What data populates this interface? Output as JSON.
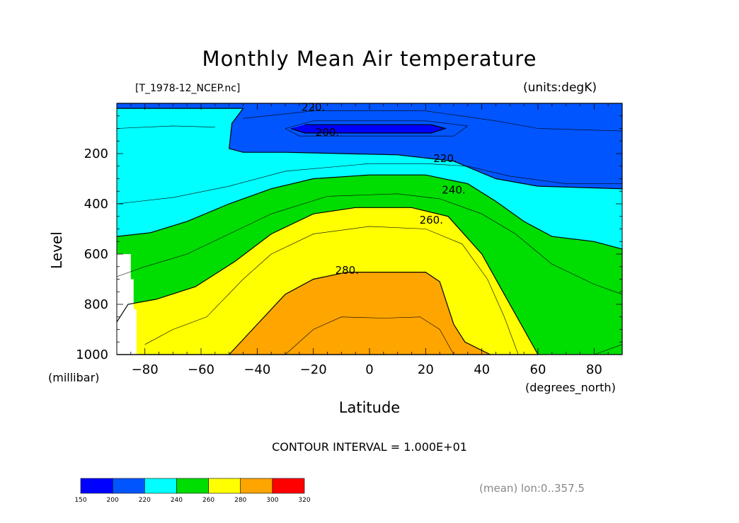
{
  "header": {
    "title": "Monthly Mean Air temperature",
    "file": "[T_1978-12_NCEP.nc]",
    "units": "(units:degK)"
  },
  "footer": {
    "contour_interval": "CONTOUR INTERVAL = 1.000E+01",
    "mean_note": "(mean) lon:0..357.5"
  },
  "colorbar": {
    "labels": [
      "150",
      "200",
      "220",
      "240",
      "260",
      "280",
      "300",
      "320"
    ],
    "colors": [
      "#0000ff",
      "#0055ff",
      "#00ffff",
      "#00dd00",
      "#ffff00",
      "#ffa500",
      "#ff0000"
    ]
  },
  "chart_data": {
    "type": "contour",
    "title": "Monthly Mean Air temperature",
    "xlabel": "Latitude",
    "xunit": "(degrees_north)",
    "ylabel": "Level",
    "yunit": "(millibar)",
    "xlim": [
      -90,
      90
    ],
    "ylim": [
      1000,
      0
    ],
    "xticks": [
      "-80",
      "-60",
      "-40",
      "-20",
      "0",
      "20",
      "40",
      "60",
      "80"
    ],
    "yticks": [
      "200",
      "400",
      "600",
      "800",
      "1000"
    ],
    "contour_labels": [
      "220.",
      "200.",
      "220.",
      "240.",
      "260.",
      "280."
    ],
    "levels": [
      200,
      220,
      240,
      260,
      280
    ],
    "band_colors": {
      "lt200": "#0000ff",
      "200_220": "#0055ff",
      "220_240": "#00ffff",
      "240_260": "#00dd00",
      "260_280": "#ffff00",
      "280_300": "#ffa500",
      "missing": "#ffffff"
    },
    "regions": {
      "core_200": [
        [
          -23,
          85
        ],
        [
          22,
          85
        ],
        [
          27,
          100
        ],
        [
          22,
          118
        ],
        [
          -23,
          118
        ],
        [
          -28,
          100
        ]
      ],
      "upper_220": [
        [
          -90,
          0
        ],
        [
          90,
          0
        ],
        [
          90,
          340
        ],
        [
          60,
          330
        ],
        [
          45,
          300
        ],
        [
          30,
          230
        ],
        [
          10,
          205
        ],
        [
          -10,
          200
        ],
        [
          -30,
          195
        ],
        [
          -45,
          195
        ],
        [
          -50,
          180
        ],
        [
          -49,
          80
        ],
        [
          -45,
          20
        ],
        [
          -90,
          20
        ]
      ],
      "mid_240": [
        [
          -90,
          530
        ],
        [
          -78,
          515
        ],
        [
          -65,
          470
        ],
        [
          -50,
          400
        ],
        [
          -35,
          340
        ],
        [
          -20,
          300
        ],
        [
          0,
          285
        ],
        [
          20,
          285
        ],
        [
          35,
          320
        ],
        [
          45,
          390
        ],
        [
          55,
          470
        ],
        [
          65,
          530
        ],
        [
          80,
          550
        ],
        [
          90,
          580
        ],
        [
          90,
          1000
        ],
        [
          -90,
          1000
        ]
      ],
      "low_260": [
        [
          -90,
          870
        ],
        [
          -86,
          800
        ],
        [
          -76,
          780
        ],
        [
          -62,
          730
        ],
        [
          -48,
          630
        ],
        [
          -35,
          520
        ],
        [
          -20,
          440
        ],
        [
          -5,
          415
        ],
        [
          15,
          415
        ],
        [
          28,
          450
        ],
        [
          40,
          600
        ],
        [
          48,
          760
        ],
        [
          55,
          900
        ],
        [
          60,
          1000
        ],
        [
          -90,
          1000
        ]
      ],
      "warm_280": [
        [
          -50,
          1000
        ],
        [
          -40,
          880
        ],
        [
          -30,
          760
        ],
        [
          -20,
          700
        ],
        [
          -8,
          672
        ],
        [
          20,
          672
        ],
        [
          25,
          710
        ],
        [
          30,
          880
        ],
        [
          34,
          950
        ],
        [
          43,
          1000
        ]
      ],
      "missing": [
        [
          -90,
          600
        ],
        [
          -85,
          600
        ],
        [
          -85,
          700
        ],
        [
          -84,
          700
        ],
        [
          -84,
          820
        ],
        [
          -83,
          820
        ],
        [
          -83,
          1000
        ],
        [
          -90,
          1000
        ]
      ]
    },
    "thin_contours": [
      [
        [
          -45,
          60
        ],
        [
          -20,
          30
        ],
        [
          20,
          30
        ],
        [
          45,
          70
        ],
        [
          60,
          100
        ],
        [
          90,
          110
        ]
      ],
      [
        [
          -90,
          100
        ],
        [
          -70,
          90
        ],
        [
          -55,
          95
        ]
      ],
      [
        [
          -30,
          100
        ],
        [
          -20,
          70
        ],
        [
          20,
          70
        ],
        [
          35,
          90
        ],
        [
          30,
          130
        ],
        [
          -25,
          130
        ],
        [
          -30,
          100
        ]
      ],
      [
        [
          -90,
          400
        ],
        [
          -70,
          375
        ],
        [
          -50,
          330
        ],
        [
          -30,
          270
        ],
        [
          0,
          240
        ],
        [
          20,
          240
        ],
        [
          35,
          250
        ],
        [
          50,
          290
        ],
        [
          70,
          320
        ],
        [
          90,
          320
        ]
      ],
      [
        [
          -90,
          690
        ],
        [
          -80,
          650
        ],
        [
          -65,
          600
        ],
        [
          -50,
          520
        ],
        [
          -35,
          440
        ],
        [
          -15,
          370
        ],
        [
          10,
          360
        ],
        [
          25,
          380
        ],
        [
          40,
          440
        ],
        [
          52,
          520
        ],
        [
          65,
          640
        ],
        [
          80,
          720
        ],
        [
          90,
          760
        ]
      ],
      [
        [
          -80,
          960
        ],
        [
          -70,
          900
        ],
        [
          -58,
          850
        ],
        [
          -45,
          700
        ],
        [
          -35,
          600
        ],
        [
          -20,
          520
        ],
        [
          0,
          490
        ],
        [
          20,
          500
        ],
        [
          33,
          560
        ],
        [
          42,
          700
        ],
        [
          48,
          850
        ],
        [
          53,
          1000
        ]
      ],
      [
        [
          -30,
          1000
        ],
        [
          -20,
          900
        ],
        [
          -10,
          850
        ],
        [
          5,
          855
        ],
        [
          18,
          850
        ],
        [
          25,
          900
        ],
        [
          30,
          1000
        ]
      ],
      [
        [
          80,
          1000
        ],
        [
          90,
          960
        ]
      ]
    ],
    "label_positions": [
      {
        "text": "220.",
        "x": -20,
        "y": 15
      },
      {
        "text": "200.",
        "x": -15,
        "y": 115
      },
      {
        "text": "220.",
        "x": 27,
        "y": 220
      },
      {
        "text": "240.",
        "x": 30,
        "y": 345
      },
      {
        "text": "260.",
        "x": 22,
        "y": 465
      },
      {
        "text": "280.",
        "x": -8,
        "y": 665
      }
    ]
  }
}
